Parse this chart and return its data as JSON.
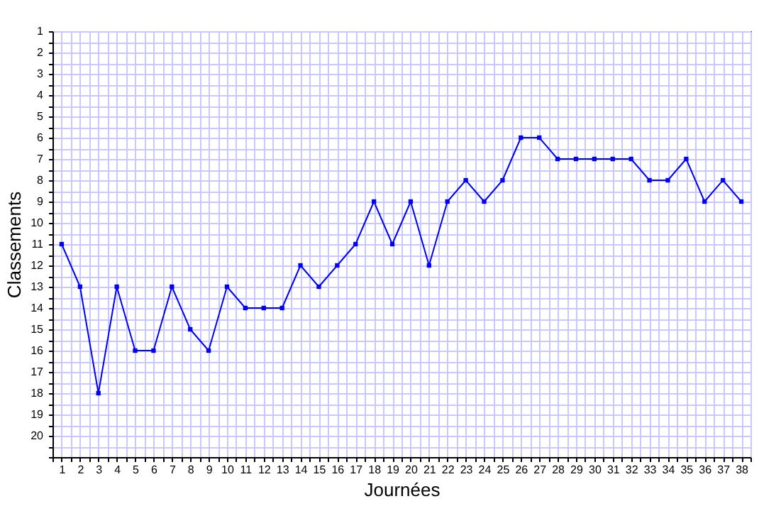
{
  "chart_data": {
    "type": "line",
    "xlabel": "Journées",
    "ylabel": "Classements",
    "x": [
      1,
      2,
      3,
      4,
      5,
      6,
      7,
      8,
      9,
      10,
      11,
      12,
      13,
      14,
      15,
      16,
      17,
      18,
      19,
      20,
      21,
      22,
      23,
      24,
      25,
      26,
      27,
      28,
      29,
      30,
      31,
      32,
      33,
      34,
      35,
      36,
      37,
      38
    ],
    "series": [
      {
        "color": "#0000ff",
        "values": [
          11,
          13,
          18,
          13,
          16,
          16,
          13,
          15,
          16,
          13,
          14,
          14,
          14,
          12,
          13,
          12,
          11,
          9,
          11,
          9,
          12,
          9,
          8,
          9,
          8,
          6,
          6,
          7,
          7,
          7,
          7,
          7,
          8,
          8,
          7,
          9,
          8,
          9
        ]
      }
    ],
    "xlim": [
      0.5,
      38.5
    ],
    "xticks": [
      {
        "value": 0.5,
        "label": null
      },
      1,
      {
        "value": 1.5,
        "label": null
      },
      2,
      {
        "value": 2.5,
        "label": null
      },
      3,
      {
        "value": 3.5,
        "label": null
      },
      4,
      {
        "value": 4.5,
        "label": null
      },
      5,
      {
        "value": 5.5,
        "label": null
      },
      6,
      {
        "value": 6.5,
        "label": null
      },
      7,
      {
        "value": 7.5,
        "label": null
      },
      8,
      {
        "value": 8.5,
        "label": null
      },
      9,
      {
        "value": 9.5,
        "label": null
      },
      10,
      {
        "value": 10.5,
        "label": null
      },
      11,
      {
        "value": 11.5,
        "label": null
      },
      12,
      {
        "value": 12.5,
        "label": null
      },
      13,
      {
        "value": 13.5,
        "label": null
      },
      14,
      {
        "value": 14.5,
        "label": null
      },
      15,
      {
        "value": 15.5,
        "label": null
      },
      16,
      {
        "value": 16.5,
        "label": null
      },
      17,
      {
        "value": 17.5,
        "label": null
      },
      18,
      {
        "value": 18.5,
        "label": null
      },
      19,
      {
        "value": 19.5,
        "label": null
      },
      20,
      {
        "value": 20.5,
        "label": null
      },
      21,
      {
        "value": 21.5,
        "label": null
      },
      22,
      {
        "value": 22.5,
        "label": null
      },
      23,
      {
        "value": 23.5,
        "label": null
      },
      24,
      {
        "value": 24.5,
        "label": null
      },
      25,
      {
        "value": 25.5,
        "label": null
      },
      26,
      {
        "value": 26.5,
        "label": null
      },
      27,
      {
        "value": 27.5,
        "label": null
      },
      28,
      {
        "value": 28.5,
        "label": null
      },
      29,
      {
        "value": 29.5,
        "label": null
      },
      30,
      {
        "value": 30.5,
        "label": null
      },
      31,
      {
        "value": 31.5,
        "label": null
      },
      32,
      {
        "value": 32.5,
        "label": null
      },
      33,
      {
        "value": 33.5,
        "label": null
      },
      34,
      {
        "value": 34.5,
        "label": null
      },
      35,
      {
        "value": 35.5,
        "label": null
      },
      36,
      {
        "value": 36.5,
        "label": null
      },
      37,
      {
        "value": 37.5,
        "label": null
      },
      38,
      {
        "value": 38.5,
        "label": null
      }
    ],
    "ylim": [
      21,
      1
    ],
    "yticks": [
      1,
      {
        "value": 1.5,
        "label": null
      },
      2,
      {
        "value": 2.5,
        "label": null
      },
      3,
      {
        "value": 3.5,
        "label": null
      },
      4,
      {
        "value": 4.5,
        "label": null
      },
      5,
      {
        "value": 5.5,
        "label": null
      },
      6,
      {
        "value": 6.5,
        "label": null
      },
      7,
      {
        "value": 7.5,
        "label": null
      },
      8,
      {
        "value": 8.5,
        "label": null
      },
      9,
      {
        "value": 9.5,
        "label": null
      },
      10,
      {
        "value": 10.5,
        "label": null
      },
      11,
      {
        "value": 11.5,
        "label": null
      },
      12,
      {
        "value": 12.5,
        "label": null
      },
      13,
      {
        "value": 13.5,
        "label": null
      },
      14,
      {
        "value": 14.5,
        "label": null
      },
      15,
      {
        "value": 15.5,
        "label": null
      },
      16,
      {
        "value": 16.5,
        "label": null
      },
      17,
      {
        "value": 17.5,
        "label": null
      },
      18,
      {
        "value": 18.5,
        "label": null
      },
      19,
      {
        "value": 19.5,
        "label": null
      },
      20,
      {
        "value": 20.5,
        "label": null
      },
      {
        "value": 21,
        "label": null
      }
    ],
    "grid": true,
    "marker": "square",
    "line_style": "solid"
  }
}
